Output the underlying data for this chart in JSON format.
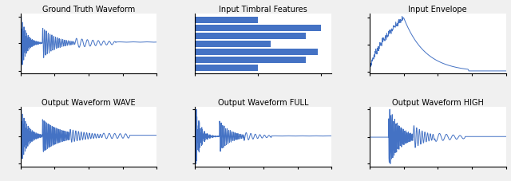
{
  "title_top_left": "Ground Truth Waveform",
  "title_top_mid": "Input Timbral Features",
  "title_top_right": "Input Envelope",
  "title_bot_left": "Output Waveform WAVE",
  "title_bot_mid": "Output Waveform FULL",
  "title_bot_right": "Output Waveform HIGH",
  "bar_values": [
    0.5,
    1.0,
    0.88,
    0.6,
    0.97,
    0.88,
    0.5
  ],
  "line_color": "#4472C4",
  "bar_color": "#4472C4",
  "title_fontsize": 7,
  "background_color": "#f0f0f0"
}
